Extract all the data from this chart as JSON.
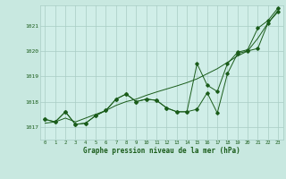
{
  "title": "Graphe pression niveau de la mer (hPa)",
  "background_color": "#c8e8e0",
  "plot_bg_color": "#d0eee8",
  "grid_color": "#a8ccc4",
  "line_color": "#1a5c1a",
  "xlim": [
    -0.5,
    23.5
  ],
  "ylim": [
    1016.5,
    1021.8
  ],
  "yticks": [
    1017,
    1018,
    1019,
    1020,
    1021
  ],
  "xticks": [
    0,
    1,
    2,
    3,
    4,
    5,
    6,
    7,
    8,
    9,
    10,
    11,
    12,
    13,
    14,
    15,
    16,
    17,
    18,
    19,
    20,
    21,
    22,
    23
  ],
  "series_jagged": [
    1017.3,
    1017.2,
    1017.6,
    1017.1,
    1017.15,
    1017.45,
    1017.65,
    1018.1,
    1018.3,
    1018.0,
    1018.1,
    1018.05,
    1017.75,
    1017.6,
    1017.6,
    1017.7,
    1018.35,
    1017.55,
    1019.1,
    1019.9,
    1020.0,
    1020.1,
    1021.1,
    1021.55
  ],
  "series_smooth": [
    1017.15,
    1017.2,
    1017.35,
    1017.2,
    1017.35,
    1017.5,
    1017.65,
    1017.85,
    1018.0,
    1018.1,
    1018.25,
    1018.38,
    1018.5,
    1018.62,
    1018.75,
    1018.9,
    1019.1,
    1019.3,
    1019.55,
    1019.8,
    1020.0,
    1020.5,
    1021.1,
    1021.6
  ],
  "series_mid": [
    1017.3,
    1017.2,
    1017.6,
    1017.1,
    1017.15,
    1017.45,
    1017.65,
    1018.1,
    1018.3,
    1018.0,
    1018.1,
    1018.05,
    1017.75,
    1017.6,
    1017.6,
    1019.5,
    1018.65,
    1018.4,
    1019.5,
    1019.95,
    1020.05,
    1020.9,
    1021.2,
    1021.7
  ]
}
